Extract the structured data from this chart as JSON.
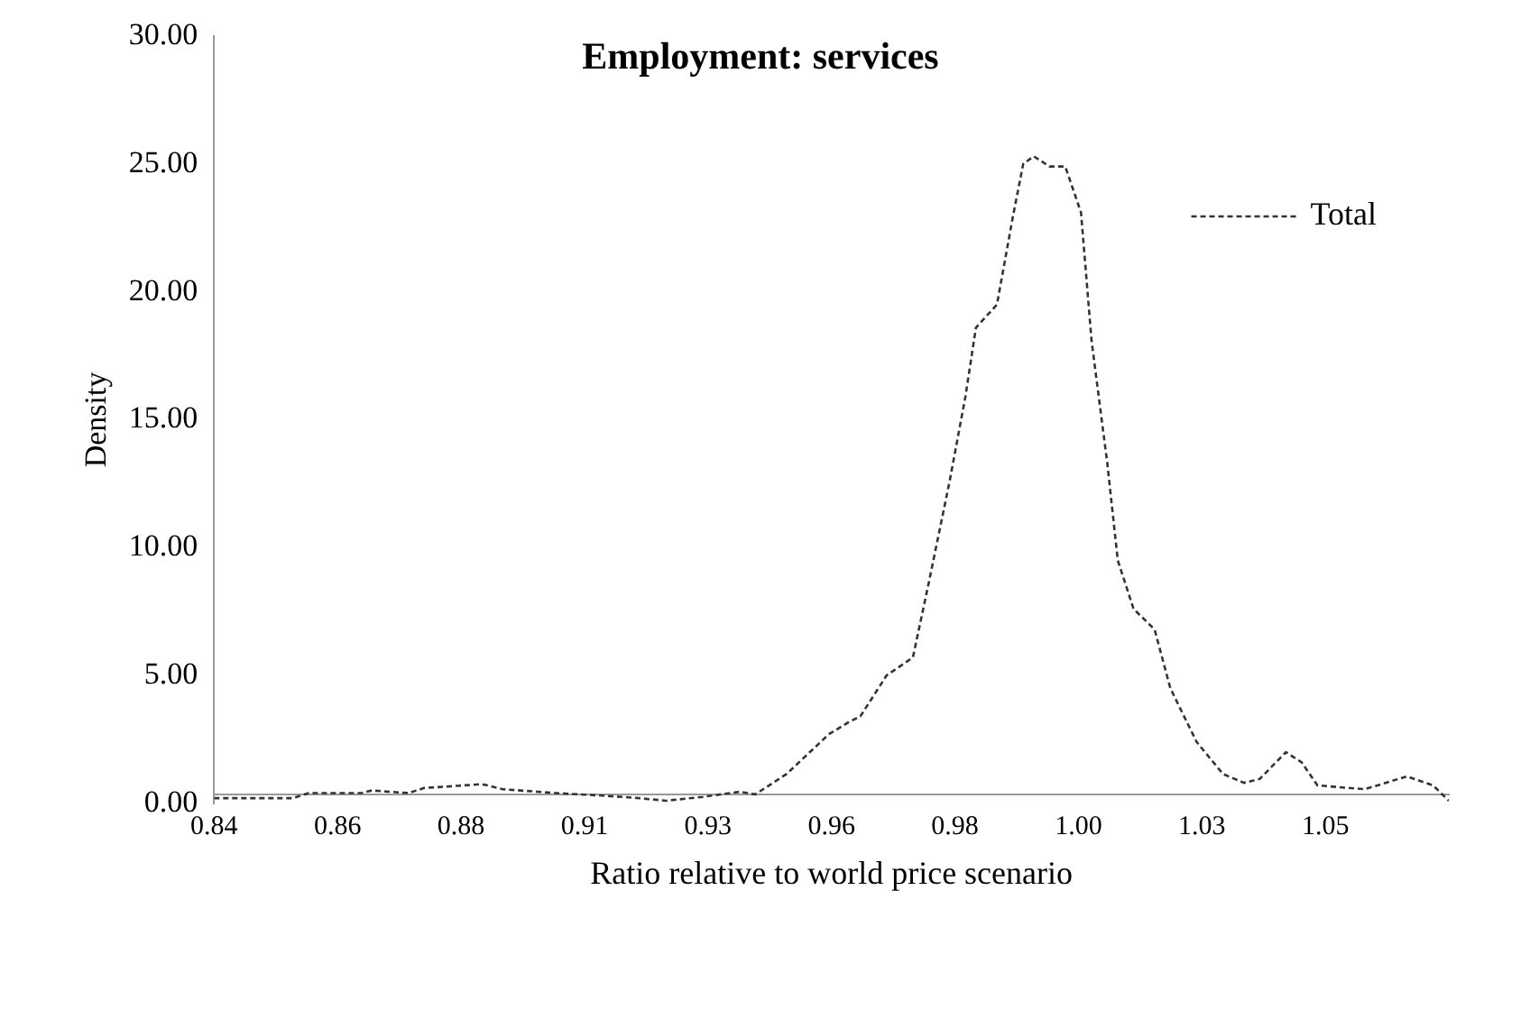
{
  "chart_data": {
    "type": "line",
    "title": "Employment: services",
    "xlabel": "Ratio relative to world price scenario",
    "ylabel": "Density",
    "xlim": [
      0.8377,
      1.0727
    ],
    "xticks": [
      {
        "value": 0.8377,
        "label": "0.84"
      },
      {
        "value": 0.8612,
        "label": "0.86"
      },
      {
        "value": 0.8847,
        "label": "0.88"
      },
      {
        "value": 0.9082,
        "label": "0.91"
      },
      {
        "value": 0.9317,
        "label": "0.93"
      },
      {
        "value": 0.9552,
        "label": "0.96"
      },
      {
        "value": 0.9787,
        "label": "0.98"
      },
      {
        "value": 1.0022,
        "label": "1.00"
      },
      {
        "value": 1.0257,
        "label": "1.03"
      },
      {
        "value": 1.0492,
        "label": "1.05"
      }
    ],
    "ylim": [
      0,
      30
    ],
    "yticks": [
      {
        "value": 0,
        "label": "0.00"
      },
      {
        "value": 5,
        "label": "5.00"
      },
      {
        "value": 10,
        "label": "10.00"
      },
      {
        "value": 15,
        "label": "15.00"
      },
      {
        "value": 20,
        "label": "20.00"
      },
      {
        "value": 25,
        "label": "25.00"
      },
      {
        "value": 30,
        "label": "30.00"
      }
    ],
    "grid": false,
    "legend": "top right",
    "marker": "none",
    "line_style": "dashed",
    "series": [
      {
        "name": "Total",
        "color": "#333333",
        "x": [
          0.8377,
          0.8527,
          0.8557,
          0.8657,
          0.8677,
          0.8747,
          0.8777,
          0.8817,
          0.8887,
          0.8927,
          0.9027,
          0.9117,
          0.9187,
          0.9237,
          0.9307,
          0.9377,
          0.9407,
          0.9467,
          0.9547,
          0.9587,
          0.9607,
          0.9657,
          0.9707,
          0.9737,
          0.9777,
          0.9807,
          0.9827,
          0.9867,
          0.9897,
          0.9917,
          0.9937,
          0.9967,
          0.9997,
          1.0027,
          1.0047,
          1.0077,
          1.0097,
          1.0127,
          1.0167,
          1.0197,
          1.0247,
          1.0297,
          1.0337,
          1.0367,
          1.0417,
          1.0447,
          1.0477,
          1.0567,
          1.0647,
          1.0697,
          1.0727
        ],
        "values": [
          0.2,
          0.2,
          0.4,
          0.4,
          0.5,
          0.4,
          0.6,
          0.65,
          0.75,
          0.55,
          0.4,
          0.3,
          0.2,
          0.1,
          0.25,
          0.45,
          0.35,
          1.15,
          2.7,
          3.2,
          3.4,
          5.0,
          5.7,
          8.6,
          12.6,
          15.9,
          18.6,
          19.5,
          22.9,
          25.0,
          25.3,
          24.9,
          24.9,
          23.1,
          18.1,
          13.3,
          9.5,
          7.6,
          6.8,
          4.5,
          2.4,
          1.15,
          0.8,
          0.95,
          2.0,
          1.6,
          0.7,
          0.55,
          1.05,
          0.7,
          0.1
        ]
      }
    ]
  }
}
